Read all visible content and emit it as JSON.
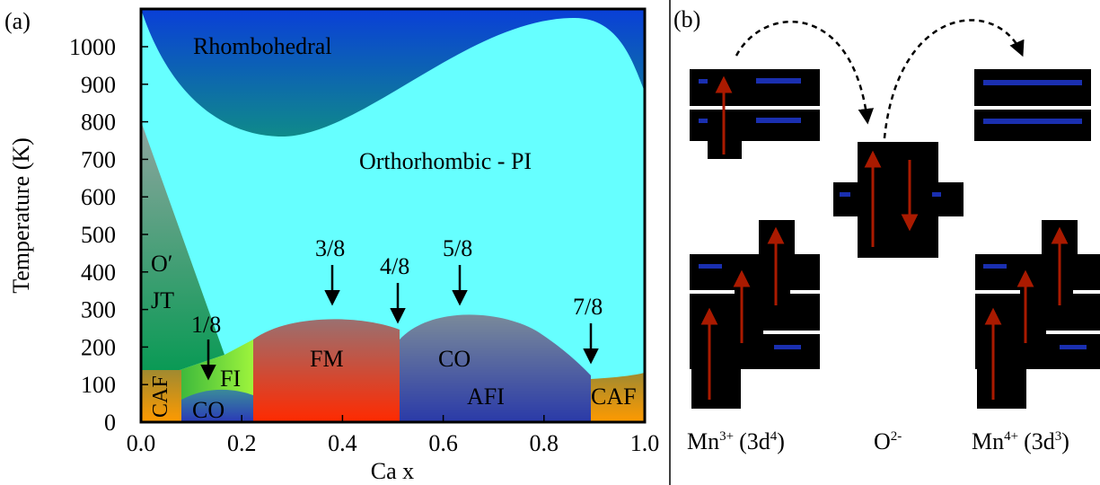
{
  "panel_a": {
    "label": "(a)",
    "x_label": "Ca x",
    "y_label": "Temperature  (K)",
    "x_ticks": [
      "0.0",
      "0.2",
      "0.4",
      "0.6",
      "0.8",
      "1.0"
    ],
    "y_ticks": [
      0,
      100,
      200,
      300,
      400,
      500,
      600,
      700,
      800,
      900,
      1000
    ],
    "regions": {
      "rhombohedral": "Rhombohedral",
      "orthorhombic": "Orthorhombic - PI",
      "o_prime": "O′",
      "jt": "JT",
      "fi": "FI",
      "caf_left": "CAF",
      "co_left": "CO",
      "fm": "FM",
      "co_right": "CO",
      "afi": "AFI",
      "caf_right": "CAF"
    },
    "fractions": [
      "1/8",
      "3/8",
      "4/8",
      "5/8",
      "7/8"
    ]
  },
  "panel_b": {
    "label": "(b)",
    "ions": [
      {
        "element": "Mn",
        "charge": "3+",
        "config": "(3d",
        "electrons": "4",
        "close": ")"
      },
      {
        "element": "O",
        "charge": "2-"
      },
      {
        "element": "Mn",
        "charge": "4+",
        "config": "(3d",
        "electrons": "3",
        "close": ")"
      }
    ]
  }
}
